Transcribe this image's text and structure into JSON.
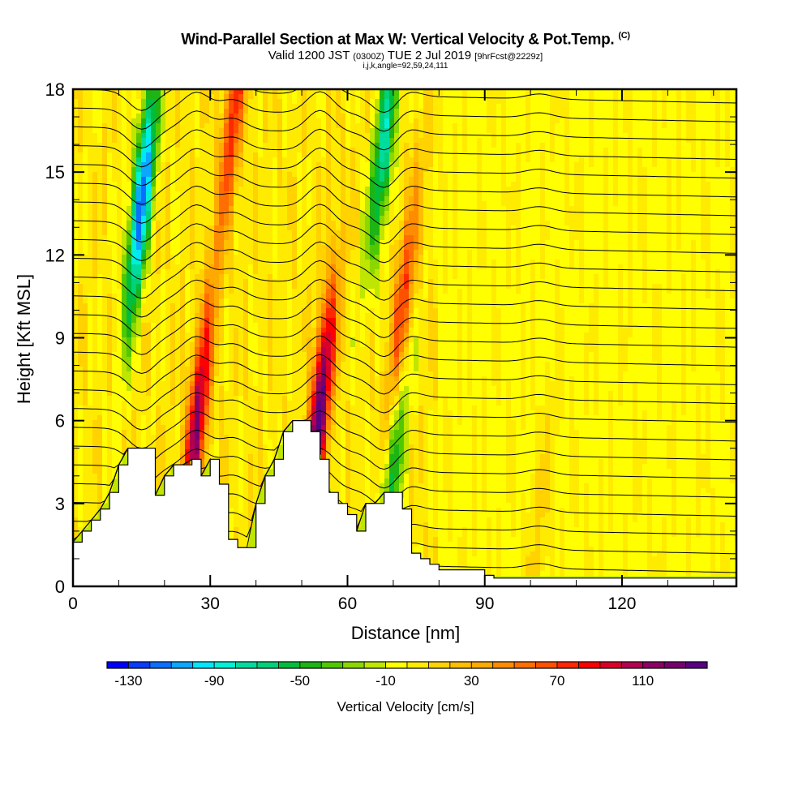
{
  "title": {
    "main": "Wind-Parallel Section at Max W: Vertical Velocity & Pot.Temp.",
    "copyright": "(C)",
    "valid_prefix": "Valid 1200 JST",
    "valid_utc": "(0300Z)",
    "valid_date": "TUE 2 Jul 2019",
    "forecast": "[9hrFcst@2229z]",
    "indices": "i,j,k,angle=92,59,24,111"
  },
  "chart_data": {
    "type": "heatmap",
    "title": "Wind-Parallel Section at Max W: Vertical Velocity & Pot.Temp.",
    "xlabel": "Distance [nm]",
    "ylabel": "Height [Kft MSL]",
    "xlim": [
      0,
      145
    ],
    "ylim": [
      0,
      18
    ],
    "xticks": [
      0,
      30,
      60,
      90,
      120
    ],
    "yticks": [
      0,
      3,
      6,
      9,
      12,
      15,
      18
    ],
    "xtick_labels": [
      "0",
      "30",
      "60",
      "90",
      "120"
    ],
    "ytick_labels": [
      "0",
      "3",
      "6",
      "9",
      "12",
      "15",
      "18"
    ],
    "colorbar": {
      "label": "Vertical Velocity [cm/s]",
      "min": -140,
      "max": 140,
      "step": 10,
      "tick_values": [
        -130,
        -90,
        -50,
        -10,
        30,
        70,
        110
      ],
      "tick_labels": [
        "-130",
        "-90",
        "-50",
        "-10",
        "30",
        "70",
        "110"
      ],
      "colors": [
        "#0000ff",
        "#0a3cff",
        "#0a6eff",
        "#0aa8ff",
        "#00e6ff",
        "#00f0d8",
        "#00dc9e",
        "#00d278",
        "#00be3c",
        "#1eb414",
        "#50c800",
        "#8cd700",
        "#bee600",
        "#ffff00",
        "#ffeb00",
        "#ffd200",
        "#ffbe00",
        "#ffaa00",
        "#ff8c00",
        "#ff6e00",
        "#ff5000",
        "#ff2800",
        "#ff0000",
        "#dc0028",
        "#b40050",
        "#8c0064",
        "#78006e",
        "#5a0082"
      ]
    },
    "updrafts": [
      {
        "x": 27,
        "z": 5.8,
        "peak": 110
      },
      {
        "x": 54,
        "z": 6.5,
        "peak": 130
      },
      {
        "x": 35,
        "z": 17,
        "peak": 70
      },
      {
        "x": 72,
        "z": 10,
        "peak": 70
      },
      {
        "x": 102,
        "z": 2.5,
        "peak": 30
      }
    ],
    "downdrafts": [
      {
        "x": 15,
        "z": 14,
        "peak": -120
      },
      {
        "x": 68,
        "z": 16,
        "peak": -80
      },
      {
        "x": 70,
        "z": 4.5,
        "peak": -60
      }
    ],
    "terrain_kft": {
      "x": [
        0,
        2,
        4,
        6,
        8,
        10,
        12,
        14,
        16,
        18,
        20,
        22,
        24,
        26,
        28,
        30,
        32,
        34,
        36,
        38,
        40,
        42,
        44,
        46,
        48,
        50,
        52,
        54,
        56,
        58,
        60,
        62,
        64,
        66,
        68,
        70,
        72,
        74,
        76,
        78,
        80,
        85,
        90,
        92,
        145
      ],
      "z": [
        1.6,
        2.0,
        2.4,
        2.8,
        3.4,
        4.4,
        5.0,
        5.0,
        5.0,
        3.3,
        4.0,
        4.4,
        4.4,
        4.6,
        4.0,
        4.6,
        3.7,
        1.7,
        1.4,
        1.4,
        3.0,
        4.0,
        4.6,
        5.6,
        6.0,
        6.0,
        5.6,
        4.6,
        3.4,
        3.0,
        2.6,
        2.0,
        3.0,
        3.0,
        3.4,
        3.4,
        2.8,
        1.2,
        1.0,
        0.8,
        0.6,
        0.6,
        0.4,
        0.3,
        0.3
      ]
    },
    "theta_contours": {
      "count": 26,
      "label": "Pot.Temp."
    }
  }
}
